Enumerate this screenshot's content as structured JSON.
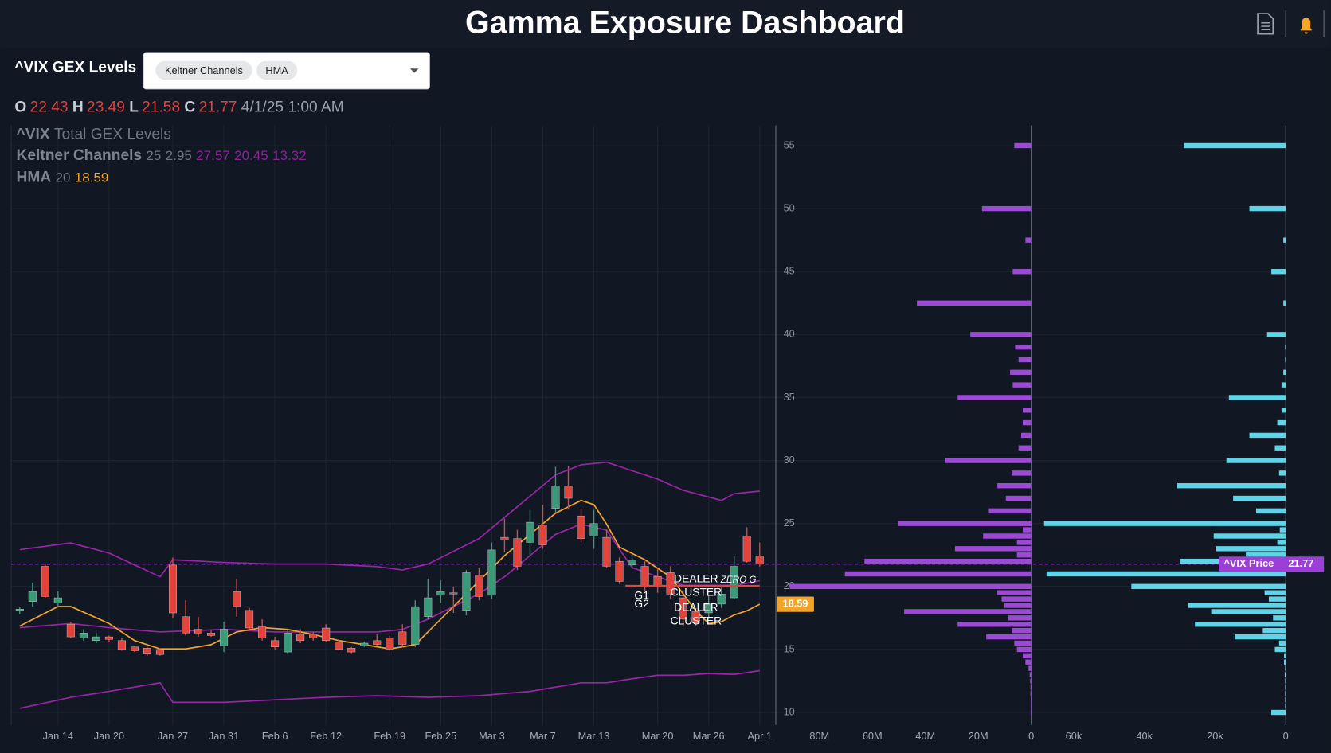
{
  "header": {
    "title": "Gamma Exposure Dashboard"
  },
  "toolbar": {
    "label": "^VIX GEX Levels",
    "chips": [
      "Keltner Channels",
      "HMA"
    ]
  },
  "ohlc": {
    "labels": [
      "O",
      "H",
      "L",
      "C"
    ],
    "timestamp": "4/1/25 1:00 AM"
  },
  "chart_data": [
    {
      "type": "candlestick",
      "categories": [
        null,
        null,
        null,
        "Jan 14",
        null,
        null,
        null,
        "Jan 20",
        null,
        null,
        null,
        null,
        "Jan 27",
        null,
        null,
        null,
        "Jan 31",
        null,
        null,
        null,
        "Feb 6",
        null,
        null,
        null,
        "Feb 12",
        null,
        null,
        null,
        null,
        "Feb 19",
        null,
        null,
        null,
        "Feb 25",
        null,
        null,
        null,
        "Mar 3",
        null,
        null,
        null,
        "Mar 7",
        null,
        null,
        null,
        "Mar 13",
        null,
        null,
        null,
        null,
        "Mar 20",
        null,
        null,
        null,
        "Mar 26",
        null,
        null,
        null,
        "Apr 1"
      ],
      "ylim": [
        9,
        56.6
      ],
      "yticks": [
        10,
        15,
        20,
        25,
        30,
        35,
        40,
        45,
        50,
        55
      ],
      "grid": true,
      "series": [
        {
          "name": "^VIX",
          "type": "candlestick",
          "up_color": "#3a9a78",
          "down_color": "#e2433b",
          "open": [
            18.1,
            18.8,
            21.6,
            18.7,
            17.0,
            15.9,
            15.7,
            16.0,
            15.7,
            15.2,
            15.1,
            15.0,
            21.7,
            17.6,
            16.6,
            16.3,
            15.3,
            19.6,
            18.1,
            16.8,
            15.7,
            14.8,
            16.2,
            16.2,
            16.7,
            15.6,
            15.1,
            15.3,
            15.7,
            15.9,
            16.4,
            15.4,
            17.6,
            19.3,
            19.5,
            18.1,
            20.9,
            19.3,
            23.9,
            23.8,
            23.5,
            24.9,
            26.2,
            28.0,
            25.6,
            24.0,
            23.9,
            22.0,
            21.7,
            21.6,
            20.8,
            21.1,
            19.1,
            18.0,
            17.9,
            18.6,
            19.1,
            24.0,
            22.43
          ],
          "high": [
            18.4,
            20.3,
            21.8,
            19.6,
            17.2,
            16.6,
            16.3,
            16.1,
            15.9,
            15.3,
            15.2,
            15.1,
            22.3,
            18.9,
            17.6,
            16.5,
            17.2,
            20.6,
            18.3,
            17.4,
            16.0,
            16.6,
            16.6,
            16.4,
            17.0,
            15.8,
            15.2,
            15.6,
            16.2,
            16.1,
            17.0,
            18.9,
            20.6,
            20.5,
            20.0,
            21.3,
            21.5,
            23.5,
            25.4,
            24.5,
            26.1,
            26.5,
            29.5,
            29.6,
            26.2,
            26.1,
            24.5,
            22.3,
            22.5,
            22.0,
            21.4,
            21.6,
            19.6,
            18.3,
            19.3,
            19.9,
            22.4,
            24.7,
            23.49
          ],
          "low": [
            17.8,
            18.4,
            19.1,
            18.4,
            15.9,
            15.7,
            15.5,
            15.6,
            14.9,
            14.8,
            14.5,
            14.5,
            17.5,
            16.1,
            16.0,
            16.0,
            14.8,
            17.6,
            16.6,
            15.7,
            15.0,
            14.7,
            15.5,
            15.7,
            15.6,
            14.9,
            14.7,
            15.2,
            15.3,
            14.9,
            15.2,
            15.2,
            17.4,
            18.7,
            17.9,
            17.7,
            18.9,
            19.0,
            22.7,
            21.3,
            22.4,
            23.0,
            25.9,
            26.1,
            23.5,
            23.0,
            21.5,
            20.2,
            21.4,
            19.6,
            19.5,
            19.0,
            16.8,
            16.9,
            17.4,
            18.3,
            19.0,
            21.9,
            21.58
          ],
          "close": [
            18.2,
            19.6,
            19.2,
            19.1,
            16.0,
            16.3,
            16.0,
            15.8,
            15.0,
            14.9,
            14.7,
            14.6,
            17.9,
            16.3,
            16.3,
            16.1,
            16.6,
            18.4,
            16.7,
            15.9,
            15.2,
            16.3,
            15.7,
            15.9,
            15.7,
            15.0,
            14.8,
            15.5,
            15.4,
            15.0,
            15.4,
            18.4,
            19.1,
            19.6,
            19.4,
            21.1,
            19.2,
            22.9,
            23.7,
            21.6,
            25.1,
            23.3,
            28.0,
            27.0,
            23.8,
            25.0,
            21.6,
            20.4,
            22.1,
            20.0,
            20.0,
            19.4,
            17.4,
            17.1,
            18.6,
            19.4,
            21.6,
            22.0,
            21.77
          ]
        },
        {
          "type": "line",
          "color": "#9a24a8",
          "x": [
            0,
            4,
            7,
            11,
            12,
            16,
            20,
            24,
            28,
            30,
            32,
            34,
            36,
            38,
            40,
            42,
            44,
            46,
            48,
            50,
            52,
            54,
            55,
            56,
            58
          ],
          "values": [
            22.92,
            23.46,
            22.65,
            20.77,
            22.12,
            21.91,
            21.78,
            21.78,
            21.58,
            21.31,
            21.78,
            22.79,
            23.8,
            25.49,
            27.17,
            28.86,
            29.66,
            29.87,
            29.19,
            28.52,
            27.64,
            27.1,
            26.83,
            27.37,
            27.57
          ]
        },
        {
          "type": "line",
          "color": "#9a24a8",
          "x": [
            0,
            4,
            7,
            11,
            16,
            20,
            24,
            28,
            30,
            32,
            34,
            36,
            38,
            40,
            42,
            44,
            46,
            48,
            50,
            52,
            54,
            56,
            58
          ],
          "values": [
            16.73,
            17.06,
            16.73,
            16.39,
            16.59,
            16.39,
            16.39,
            16.39,
            16.59,
            17.4,
            18.41,
            19.42,
            20.77,
            22.45,
            24.14,
            24.95,
            24.47,
            21.5,
            20.77,
            20.09,
            20.09,
            20.09,
            20.45
          ]
        },
        {
          "type": "line",
          "color": "#9a24a8",
          "x": [
            0,
            4,
            7,
            11,
            12,
            16,
            20,
            24,
            28,
            32,
            36,
            40,
            44,
            46,
            48,
            50,
            52,
            54,
            56,
            58
          ],
          "values": [
            10.32,
            11.2,
            11.67,
            12.35,
            10.8,
            10.8,
            11.0,
            11.2,
            11.33,
            11.2,
            11.33,
            11.67,
            12.35,
            12.35,
            12.67,
            12.95,
            12.95,
            13.09,
            13.02,
            13.32
          ]
        },
        {
          "type": "line",
          "color": "#f2a42a",
          "x": [
            0,
            3,
            4,
            7,
            9,
            11,
            13,
            15,
            17,
            19,
            21,
            23,
            25,
            27,
            29,
            31,
            32,
            34,
            36,
            38,
            40,
            42,
            44,
            45,
            46,
            47,
            49,
            51,
            52,
            53,
            54,
            55,
            56,
            57,
            58
          ],
          "values": [
            16.86,
            18.41,
            18.41,
            17.06,
            15.71,
            15.04,
            15.04,
            15.38,
            16.39,
            16.73,
            16.59,
            16.19,
            15.71,
            15.38,
            15.04,
            15.38,
            16.39,
            18.41,
            20.43,
            22.45,
            24.14,
            25.82,
            26.83,
            26.5,
            24.95,
            23.13,
            22.12,
            20.77,
            19.42,
            18.07,
            17.06,
            17.2,
            17.74,
            18.07,
            18.59
          ]
        }
      ],
      "legend_rows": [
        {
          "text": "Total GEX Levels"
        },
        {
          "title": "Keltner Channels",
          "params": [
            25,
            2.95
          ]
        },
        {
          "title": "HMA",
          "params": [
            20
          ]
        }
      ],
      "price_tag": "^VIX Price",
      "price_tag_color": "#9b3fd6",
      "levels": [
        {
          "value": 20.05,
          "color": "#e2433b"
        }
      ],
      "annotations": [
        {
          "text": "DEALER"
        },
        {
          "text": "CLUSTER"
        },
        {
          "text": "ZERO G"
        },
        {
          "text": "G1"
        },
        {
          "text": "G2"
        },
        {
          "text": "DEALER"
        },
        {
          "text": "CLUSTER"
        }
      ]
    },
    {
      "type": "bar",
      "orientation": "horizontal",
      "x_reversed": true,
      "color": "#9b4ad4",
      "y": [
        55,
        50,
        47.5,
        45,
        42.5,
        40,
        39,
        38,
        37,
        36,
        35,
        34,
        33,
        32,
        31,
        30,
        29,
        28,
        27,
        26,
        25,
        24.5,
        24,
        23.5,
        23,
        22.5,
        22,
        21,
        20,
        19.5,
        19,
        18.5,
        18,
        17.5,
        17,
        16.5,
        16,
        15.5,
        15,
        14.5,
        14,
        13.5,
        13,
        12.5,
        12,
        11.5,
        11,
        10.5,
        10
      ],
      "values": [
        6400000,
        18600000,
        2200000,
        7000000,
        43200000,
        23000000,
        6100000,
        4800000,
        8000000,
        7000000,
        27800000,
        3200000,
        3200000,
        3800000,
        4800000,
        32600000,
        7400000,
        12800000,
        9600000,
        16000000,
        50200000,
        3200000,
        18200000,
        5400000,
        28800000,
        5400000,
        63000000,
        70400000,
        91200000,
        12800000,
        11200000,
        10200000,
        48000000,
        8600000,
        27800000,
        7400000,
        17000000,
        6400000,
        5400000,
        3200000,
        2200000,
        1000000,
        600000,
        400000,
        300000,
        300000,
        200000,
        200000,
        200000
      ],
      "xlim": [
        0,
        92000000
      ],
      "xticks": [
        0,
        {
          "value": 20000000,
          "label": "20M"
        },
        {
          "value": 40000000,
          "label": "40M"
        },
        {
          "value": 60000000,
          "label": "60M"
        },
        {
          "value": 80000000,
          "label": "80M"
        }
      ]
    },
    {
      "type": "bar",
      "orientation": "horizontal",
      "x_reversed": true,
      "color": "#5fd3e8",
      "y": [
        55,
        50,
        47.5,
        45,
        42.5,
        40,
        39,
        38,
        37,
        36,
        35,
        34,
        33,
        32,
        31,
        30,
        29,
        28,
        27,
        26,
        25,
        24.5,
        24,
        23.5,
        23,
        22.5,
        22,
        21,
        20,
        19.5,
        19,
        18.5,
        18,
        17.5,
        17,
        16.5,
        16,
        15.5,
        15,
        14.5,
        14,
        13.5,
        13,
        12.5,
        12,
        11.5,
        11,
        10.5,
        10
      ],
      "values": [
        28800,
        10300,
        700,
        4100,
        700,
        5300,
        200,
        200,
        700,
        1200,
        16100,
        1200,
        2400,
        10300,
        3100,
        16800,
        1900,
        30700,
        14900,
        8400,
        68400,
        1700,
        20400,
        2400,
        19700,
        11300,
        30000,
        67700,
        43700,
        6000,
        4800,
        27600,
        21100,
        3600,
        25700,
        6500,
        14400,
        1900,
        3100,
        500,
        500,
        200,
        300,
        200,
        200,
        200,
        200,
        200,
        4100
      ],
      "xlim": [
        0,
        71300
      ],
      "xticks": [
        0,
        {
          "value": 20000,
          "label": "20k"
        },
        {
          "value": 40000,
          "label": "40k"
        },
        {
          "value": 60000,
          "label": "60k"
        }
      ]
    }
  ]
}
